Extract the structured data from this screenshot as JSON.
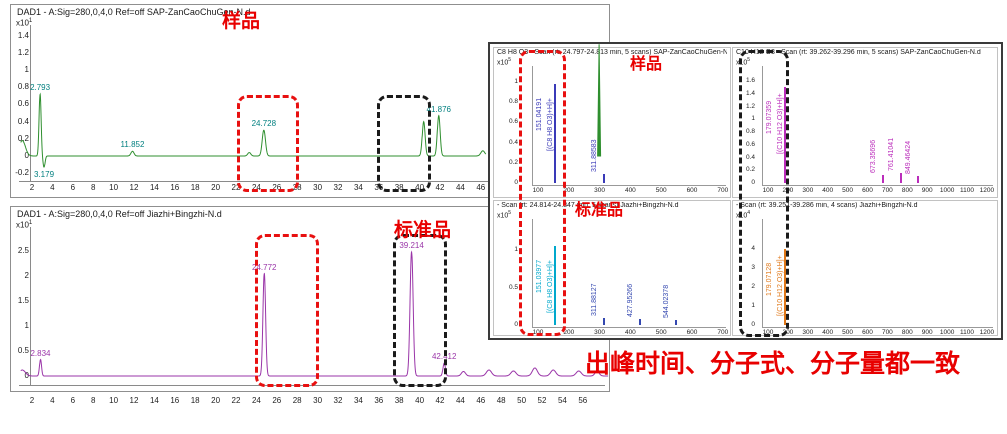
{
  "annotations": {
    "sample_label": "样品",
    "standard_label": "标准品",
    "inset_sample_label": "样品",
    "inset_standard_label": "标准品",
    "conclusion": "出峰时间、分子式、分子量都一致"
  },
  "colors": {
    "highlight_red": "#e81010",
    "highlight_black": "#1a1a1a",
    "annotation_red": "#e80000",
    "sample_trace": "#2f8f2f",
    "standard_trace": "#9a35a8"
  },
  "chart_data": [
    {
      "id": "chromTop",
      "type": "line",
      "role": "uv-chromatogram-sample",
      "title": "DAD1 - A:Sig=280,0,4,0  Ref=off SAP-ZanCaoChuGen-N.d",
      "y_unit_base": "x10",
      "y_unit_exp": "1",
      "color": "#2f8f2f",
      "label_color": "#007f7f",
      "xlim": [
        0.9,
        58.5
      ],
      "trace_end": 46.5,
      "yticks": [
        1.4,
        1.2,
        1,
        0.8,
        0.6,
        0.4,
        0.2,
        0,
        -0.2
      ],
      "xticks": [
        2,
        4,
        6,
        8,
        10,
        12,
        14,
        16,
        18,
        20,
        22,
        24,
        26,
        28,
        30,
        32,
        34,
        36,
        38,
        40,
        42,
        44,
        46,
        48,
        50,
        52,
        54,
        56
      ],
      "peaks": [
        {
          "rt": 1.05,
          "v": 0.18,
          "w": 0.3
        },
        {
          "rt": 2.793,
          "v": 0.72,
          "w": 0.1,
          "label": "2.793"
        },
        {
          "rt": 3.179,
          "v": -0.13,
          "w": 0.1,
          "label": "3.179"
        },
        {
          "rt": 11.852,
          "v": 0.055,
          "w": 0.15,
          "label": "11.852"
        },
        {
          "rt": 23.3,
          "v": 0.04,
          "w": 0.15
        },
        {
          "rt": 24.728,
          "v": 0.3,
          "w": 0.16,
          "label": "24.728"
        },
        {
          "rt": 40.4,
          "v": 0.4,
          "w": 0.14
        },
        {
          "rt": 41.876,
          "v": 0.47,
          "w": 0.14,
          "label": "41.876"
        },
        {
          "rt": 46.2,
          "v": 0.06,
          "w": 0.2
        }
      ],
      "end_spike": {
        "rt": 57.6,
        "v": 1.3
      }
    },
    {
      "id": "chromBottom",
      "type": "line",
      "role": "uv-chromatogram-standard",
      "title": "DAD1 - A:Sig=280,0,4,0  Ref=off Jiazhi+Bingzhi-N.d",
      "y_unit_base": "x10",
      "y_unit_exp": "1",
      "color": "#9a35a8",
      "label_color": "#9a35a8",
      "xlim": [
        0.9,
        58.5
      ],
      "yticks": [
        2.5,
        2,
        1.5,
        1,
        0.5,
        0
      ],
      "xticks": [
        2,
        4,
        6,
        8,
        10,
        12,
        14,
        16,
        18,
        20,
        22,
        24,
        26,
        28,
        30,
        32,
        34,
        36,
        38,
        40,
        42,
        44,
        46,
        48,
        50,
        52,
        54,
        56
      ],
      "peaks": [
        {
          "rt": 1.05,
          "v": 0.12,
          "w": 0.3
        },
        {
          "rt": 2.834,
          "v": 0.33,
          "w": 0.1,
          "label": "2.834"
        },
        {
          "rt": 24.772,
          "v": 2.05,
          "w": 0.13,
          "label": "24.772"
        },
        {
          "rt": 39.214,
          "v": 2.48,
          "w": 0.15,
          "label": "39.214"
        },
        {
          "rt": 42.412,
          "v": 0.26,
          "w": 0.12,
          "label": "42.412"
        },
        {
          "rt": 44.3,
          "v": 0.09,
          "w": 0.2
        },
        {
          "rt": 46.8,
          "v": 0.12,
          "w": 0.25
        },
        {
          "rt": 49.2,
          "v": 0.1,
          "w": 0.25
        },
        {
          "rt": 51.3,
          "v": 0.16,
          "w": 0.25
        },
        {
          "rt": 53.1,
          "v": 0.12,
          "w": 0.25
        },
        {
          "rt": 55.6,
          "v": 0.1,
          "w": 0.25
        },
        {
          "rt": 57.4,
          "v": 0.1,
          "w": 0.2
        }
      ]
    },
    {
      "id": "spec0",
      "type": "mass-spectrum",
      "role": "ms-sample-c8h8o3",
      "title": "C8 H8 O3 - Scan (rt: 24.797-24.813 min, 5 scans) SAP-ZanCaoChuGen-N.d",
      "y_unit_base": "x10",
      "y_unit_exp": "5",
      "color": "#3a3ab8",
      "yticks": [
        1,
        0.8,
        0.6,
        0.4,
        0.2,
        0
      ],
      "xticks": [
        100,
        200,
        300,
        400,
        500,
        600,
        700
      ],
      "peaks": [
        {
          "mz": 151.04191,
          "v": 0.98,
          "label": "151.04191",
          "formula": "[(C8 H8 O3)+H]+"
        },
        {
          "mz": 311.88583,
          "v": 0.09,
          "label": "311.88583"
        }
      ]
    },
    {
      "id": "spec1",
      "type": "mass-spectrum",
      "role": "ms-sample-c10h12o3",
      "title": "C10 H12 O3 - Scan (rt: 39.262-39.296 min, 5 scans) SAP-ZanCaoChuGen-N.d",
      "y_unit_base": "x10",
      "y_unit_exp": "5",
      "color": "#bb2dbb",
      "yticks": [
        1.6,
        1.4,
        1.2,
        1,
        0.8,
        0.6,
        0.4,
        0.2,
        0
      ],
      "xticks": [
        100,
        200,
        300,
        400,
        500,
        600,
        700,
        800,
        900,
        1000,
        1100,
        1200
      ],
      "peaks": [
        {
          "mz": 179.07359,
          "v": 1.5,
          "label": "179.07359",
          "formula": "[(C10 H12 O3)+H]+"
        },
        {
          "mz": 673.35696,
          "v": 0.13,
          "label": "673.35696"
        },
        {
          "mz": 761.41041,
          "v": 0.16,
          "label": "761.41041"
        },
        {
          "mz": 849.46424,
          "v": 0.11,
          "label": "849.46424"
        }
      ]
    },
    {
      "id": "spec2",
      "type": "mass-spectrum",
      "role": "ms-standard-c8h8o3",
      "title": "- Scan (rt: 24.814-24.847 min, 5 scans) Jiazhi+Bingzhi-N.d",
      "y_unit_base": "x10",
      "y_unit_exp": "5",
      "color": "#00a8cc",
      "yticks": [
        1,
        0.5,
        0
      ],
      "xticks": [
        100,
        200,
        300,
        400,
        500,
        600,
        700
      ],
      "peaks": [
        {
          "mz": 151.03977,
          "v": 1.05,
          "label": "151.03977",
          "formula": "[(C8 H8 O3)+H]+"
        },
        {
          "mz": 311.88127,
          "v": 0.1,
          "label": "311.88127",
          "color": "#3448b0",
          "label_color": "#3448b0"
        },
        {
          "mz": 427.95266,
          "v": 0.08,
          "label": "427.95266",
          "color": "#3448b0",
          "label_color": "#3448b0"
        },
        {
          "mz": 544.02378,
          "v": 0.065,
          "label": "544.02378",
          "color": "#3448b0",
          "label_color": "#3448b0"
        }
      ]
    },
    {
      "id": "spec3",
      "type": "mass-spectrum",
      "role": "ms-standard-c10h12o3",
      "title": "- Scan (rt: 39.251-39.286 min, 4 scans) Jiazhi+Bingzhi-N.d",
      "y_unit_base": "x10",
      "y_unit_exp": "4",
      "color": "#e07818",
      "yticks": [
        4,
        3,
        2,
        1,
        0
      ],
      "xticks": [
        100,
        200,
        300,
        400,
        500,
        600,
        700,
        800,
        900,
        1000,
        1100,
        1200
      ],
      "peaks": [
        {
          "mz": 179.07128,
          "v": 4.0,
          "label": "179.07128",
          "formula": "[(C10 H12 O3)+H]+"
        }
      ]
    }
  ]
}
